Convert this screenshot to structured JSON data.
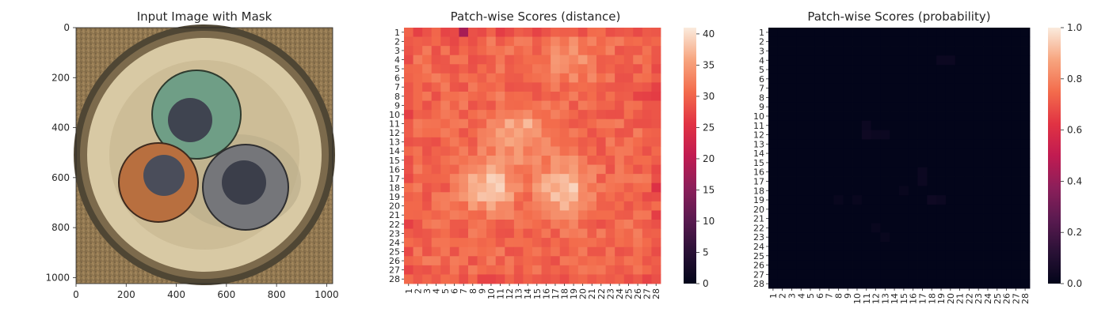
{
  "chart_data": [
    {
      "type": "image",
      "title": "Input Image with Mask",
      "xticks": [
        "0",
        "200",
        "400",
        "600",
        "800",
        "1000"
      ],
      "yticks": [
        "0",
        "200",
        "400",
        "600",
        "800",
        "1000"
      ],
      "xlim": [
        0,
        1024
      ],
      "ylim": [
        1024,
        0
      ],
      "description_regions": [
        {
          "name": "green cable",
          "cx": 480,
          "cy": 430,
          "r": 170,
          "color": "#6f9e86"
        },
        {
          "name": "orange cable",
          "cx": 285,
          "cy": 630,
          "r": 165,
          "color": "#b86f3f"
        },
        {
          "name": "grey cable",
          "cx": 675,
          "cy": 650,
          "r": 165,
          "color": "#7a7b78"
        }
      ]
    },
    {
      "type": "heatmap",
      "title": "Patch-wise Scores (distance)",
      "rows": 28,
      "cols": 28,
      "row_labels": [
        "1",
        "2",
        "3",
        "4",
        "5",
        "6",
        "7",
        "8",
        "9",
        "10",
        "11",
        "12",
        "13",
        "14",
        "15",
        "16",
        "17",
        "18",
        "19",
        "20",
        "21",
        "22",
        "23",
        "24",
        "25",
        "26",
        "27",
        "28"
      ],
      "col_labels": [
        "1",
        "2",
        "3",
        "4",
        "5",
        "6",
        "7",
        "8",
        "9",
        "10",
        "11",
        "12",
        "13",
        "14",
        "15",
        "16",
        "17",
        "18",
        "19",
        "20",
        "21",
        "22",
        "23",
        "24",
        "25",
        "26",
        "27",
        "28"
      ],
      "colorbar": {
        "min": 0,
        "max": 41,
        "ticks": [
          "0",
          "5",
          "10",
          "15",
          "20",
          "25",
          "30",
          "35",
          "40"
        ]
      },
      "cmap": "rocket",
      "value_summary": {
        "background": 29,
        "bright_regions": [
          {
            "row": 12,
            "col": 13,
            "value": 36
          },
          {
            "row": 18,
            "col": 10,
            "value": 38
          },
          {
            "row": 18,
            "col": 18,
            "value": 38
          },
          {
            "row": 4,
            "col": 19,
            "value": 33
          }
        ],
        "dark_spots": [
          {
            "row": 1,
            "col": 7,
            "value": 20
          },
          {
            "row": 8,
            "col": 27,
            "value": 24
          },
          {
            "row": 18,
            "col": 28,
            "value": 24
          }
        ]
      }
    },
    {
      "type": "heatmap",
      "title": "Patch-wise Scores (probability)",
      "rows": 28,
      "cols": 28,
      "row_labels": [
        "1",
        "2",
        "3",
        "4",
        "5",
        "6",
        "7",
        "8",
        "9",
        "10",
        "11",
        "12",
        "13",
        "14",
        "15",
        "16",
        "17",
        "18",
        "19",
        "20",
        "21",
        "22",
        "23",
        "24",
        "25",
        "26",
        "27",
        "28"
      ],
      "col_labels": [
        "1",
        "2",
        "3",
        "4",
        "5",
        "6",
        "7",
        "8",
        "9",
        "10",
        "11",
        "12",
        "13",
        "14",
        "15",
        "16",
        "17",
        "18",
        "19",
        "20",
        "21",
        "22",
        "23",
        "24",
        "25",
        "26",
        "27",
        "28"
      ],
      "colorbar": {
        "min": 0.0,
        "max": 1.0,
        "ticks": [
          "0.0",
          "0.2",
          "0.4",
          "0.6",
          "0.8",
          "1.0"
        ]
      },
      "cmap": "rocket",
      "value_summary": {
        "background": 0.0,
        "faint_cells": [
          {
            "row": 4,
            "col": 19,
            "value": 0.03
          },
          {
            "row": 4,
            "col": 20,
            "value": 0.03
          },
          {
            "row": 11,
            "col": 11,
            "value": 0.03
          },
          {
            "row": 12,
            "col": 11,
            "value": 0.04
          },
          {
            "row": 12,
            "col": 12,
            "value": 0.03
          },
          {
            "row": 12,
            "col": 13,
            "value": 0.03
          },
          {
            "row": 16,
            "col": 17,
            "value": 0.03
          },
          {
            "row": 17,
            "col": 17,
            "value": 0.03
          },
          {
            "row": 18,
            "col": 15,
            "value": 0.02
          },
          {
            "row": 19,
            "col": 8,
            "value": 0.02
          },
          {
            "row": 19,
            "col": 10,
            "value": 0.02
          },
          {
            "row": 19,
            "col": 18,
            "value": 0.04
          },
          {
            "row": 19,
            "col": 19,
            "value": 0.03
          },
          {
            "row": 22,
            "col": 12,
            "value": 0.02
          },
          {
            "row": 23,
            "col": 13,
            "value": 0.02
          }
        ]
      }
    }
  ]
}
